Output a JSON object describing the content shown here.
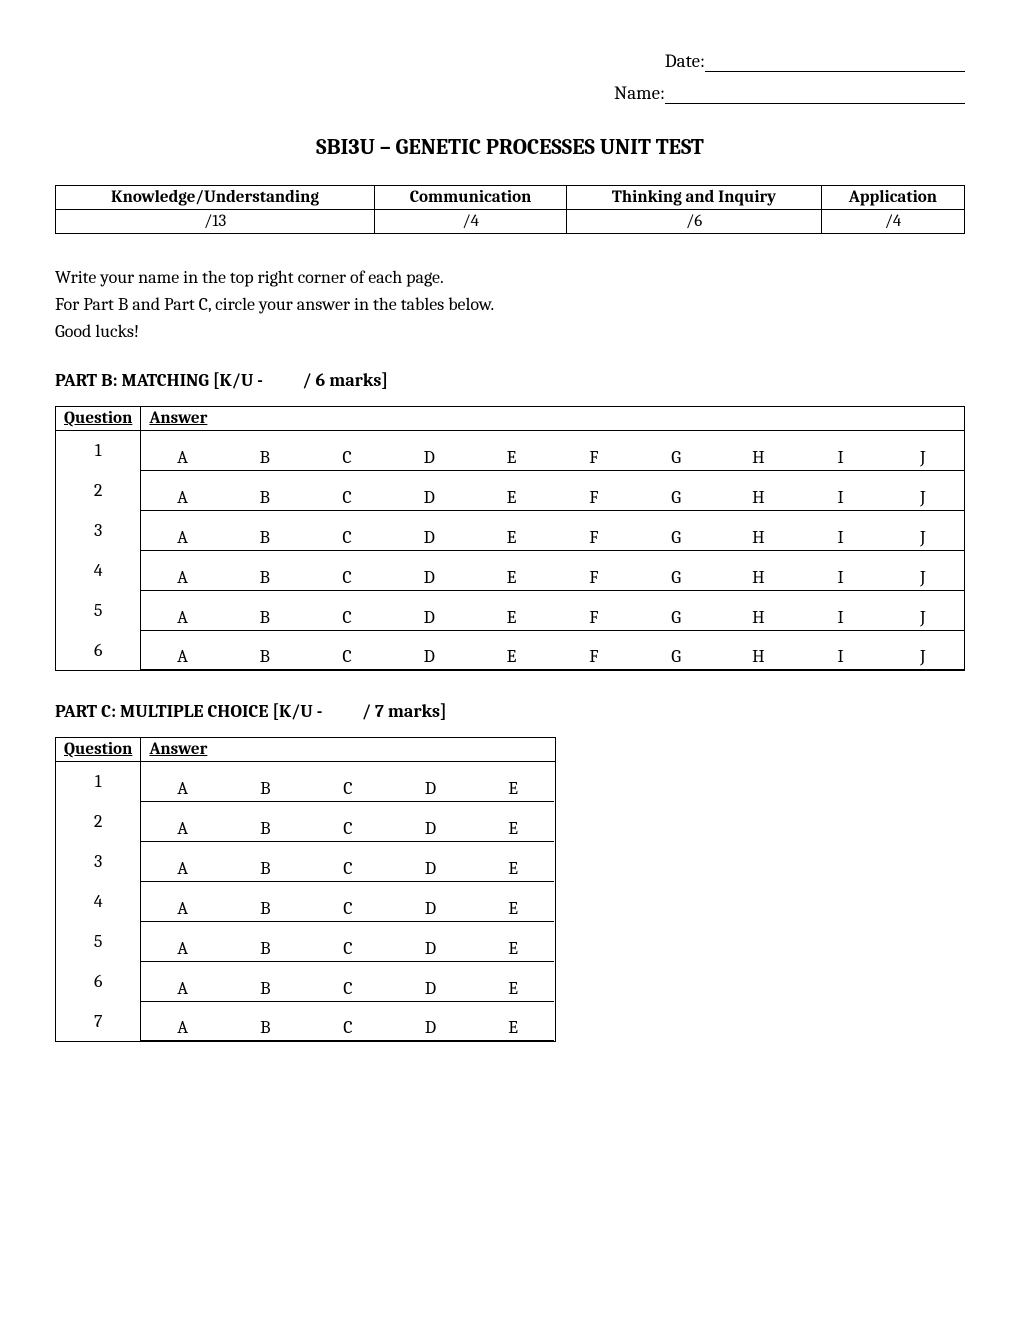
{
  "header": {
    "date_label": "Date:",
    "date_line_width": 260,
    "name_label": "Name:",
    "name_line_width": 300
  },
  "title": "SBI3U – GENETIC PROCESSES UNIT TEST",
  "rubric": {
    "columns": [
      "Knowledge/Understanding",
      "Communication",
      "Thinking and Inquiry",
      "Application"
    ],
    "values": [
      "/13",
      "/4",
      "/6",
      "/4"
    ]
  },
  "instructions": {
    "line1": "Write your name in the top right corner of each page.",
    "line2": "For Part B and Part C, circle your answer in the tables below.",
    "line3": "Good lucks!"
  },
  "partB": {
    "heading": "PART B: MATCHING [K/U -          / 6 marks]",
    "question_header": "Question",
    "answer_header": "Answer",
    "num_questions": 6,
    "options": [
      "A",
      "B",
      "C",
      "D",
      "E",
      "F",
      "G",
      "H",
      "I",
      "J"
    ]
  },
  "partC": {
    "heading": "PART C: MULTIPLE CHOICE [K/U -          / 7 marks]",
    "question_header": "Question",
    "answer_header": "Answer",
    "num_questions": 7,
    "options": [
      "A",
      "B",
      "C",
      "D",
      "E"
    ]
  },
  "colors": {
    "background": "#ffffff",
    "text": "#000000",
    "border": "#000000"
  }
}
